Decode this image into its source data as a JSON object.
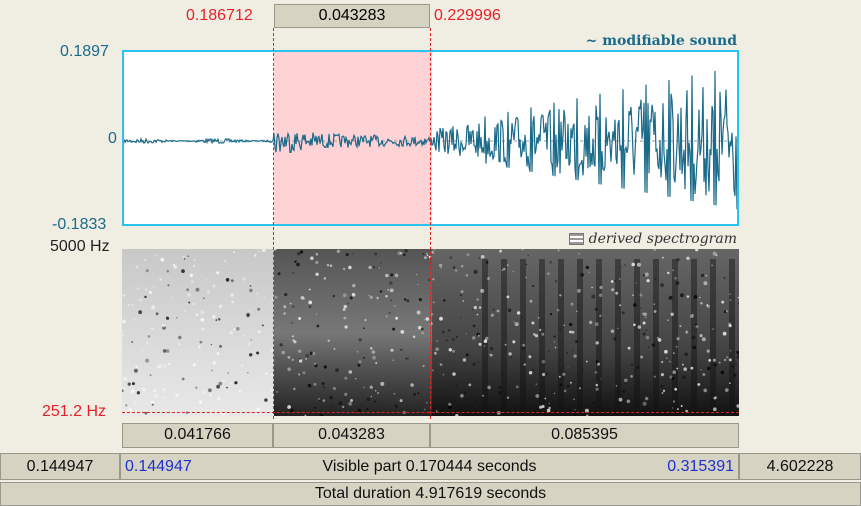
{
  "selection": {
    "start_time": "0.186712",
    "duration": "0.043283",
    "end_time": "0.229996"
  },
  "waveform": {
    "title": "~ modifiable sound",
    "y_max": "0.1897",
    "y_zero": "0",
    "y_min": "-0.1833"
  },
  "spectrogram": {
    "title": "derived spectrogram",
    "freq_max": "5000 Hz",
    "freq_cursor": "251.2 Hz"
  },
  "segments": [
    "0.041766",
    "0.043283",
    "0.085395"
  ],
  "visible_bar": {
    "left_outer": "0.144947",
    "left_inner": "0.144947",
    "label": "Visible part 0.170444 seconds",
    "right_inner": "0.315391",
    "right_outer": "4.602228"
  },
  "total_bar": {
    "label": "Total duration 4.917619 seconds"
  },
  "colors": {
    "accent": "#29c4ee",
    "wave": "#1a6a8a",
    "selection": "#ffd2d6",
    "cursor": "#e8202a"
  }
}
